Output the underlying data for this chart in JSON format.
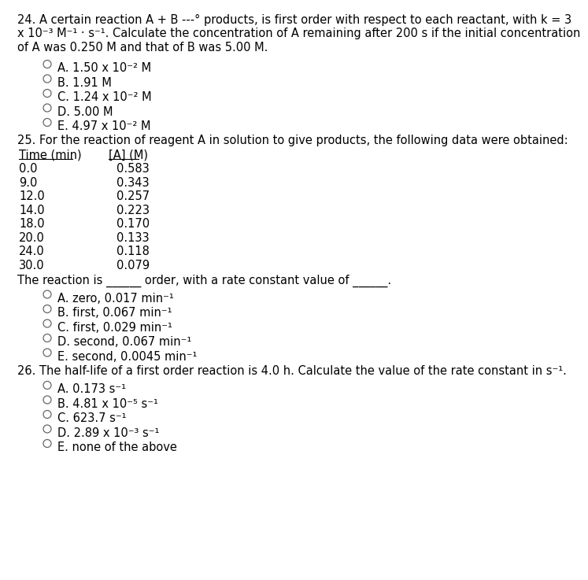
{
  "bg_color": "#ffffff",
  "text_color": "#000000",
  "q24_line1": "24. A certain reaction A + B ---° products, is first order with respect to each reactant, with k = 3",
  "q24_line2": "x 10⁻³ M⁻¹ · s⁻¹. Calculate the concentration of A remaining after 200 s if the initial concentration",
  "q24_line3": "of A was 0.250 M and that of B was 5.00 M.",
  "q24_options": [
    "A. 1.50 x 10⁻² M",
    "B. 1.91 M",
    "C. 1.24 x 10⁻² M",
    "D. 5.00 M",
    "E. 4.97 x 10⁻² M"
  ],
  "q25_line1": "25. For the reaction of reagent A in solution to give products, the following data were obtained:",
  "q25_table_headers": [
    "Time (min)",
    "[A] (M)"
  ],
  "q25_table_data": [
    [
      "0.0",
      "0.583"
    ],
    [
      "9.0",
      "0.343"
    ],
    [
      "12.0",
      "0.257"
    ],
    [
      "14.0",
      "0.223"
    ],
    [
      "18.0",
      "0.170"
    ],
    [
      "20.0",
      "0.133"
    ],
    [
      "24.0",
      "0.118"
    ],
    [
      "30.0",
      "0.079"
    ]
  ],
  "q25_question_part1": "The reaction is ",
  "q25_question_part2": "______ order, with a rate constant value of ",
  "q25_question_part3": "______.",
  "q25_options": [
    "A. zero, 0.017 min⁻¹",
    "B. first, 0.067 min⁻¹",
    "C. first, 0.029 min⁻¹",
    "D. second, 0.067 min⁻¹",
    "E. second, 0.0045 min⁻¹"
  ],
  "q26_line1": "26. The half-life of a first order reaction is 4.0 h. Calculate the value of the rate constant in s⁻¹.",
  "q26_options": [
    "A. 0.173 s⁻¹",
    "B. 4.81 x 10⁻⁵ s⁻¹",
    "C. 623.7 s⁻¹",
    "D. 2.89 x 10⁻³ s⁻¹",
    "E. none of the above"
  ]
}
